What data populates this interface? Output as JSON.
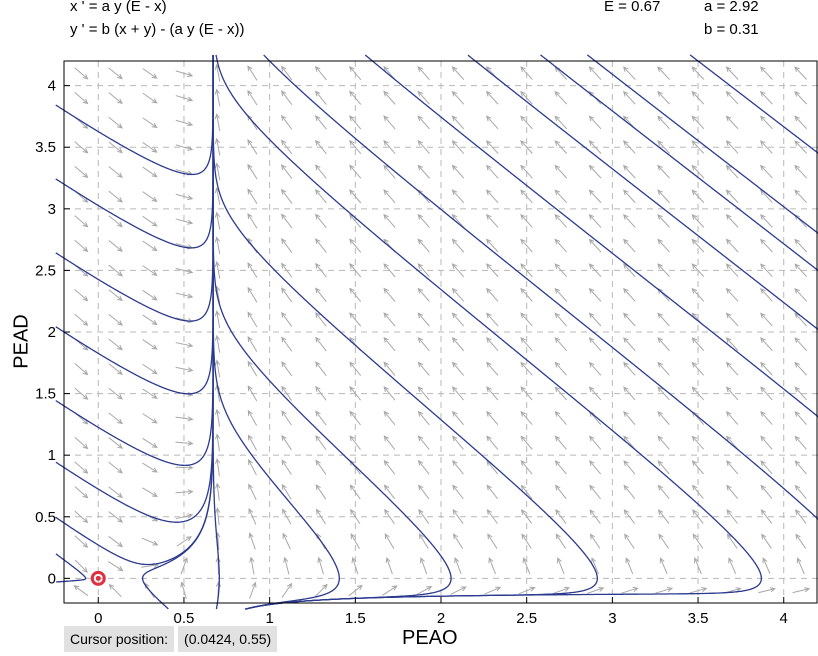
{
  "equations": {
    "line1": "x ' = a y (E - x)",
    "line2": "y ' = b (x + y) - (a y (E - x))"
  },
  "params": {
    "E": "E = 0.67",
    "a": "a = 2.92",
    "b": "b = 0.31"
  },
  "status": {
    "cursor_label": "Cursor position:",
    "cursor_value": "(0.0424, 0.55)"
  },
  "colors": {
    "trajectory": "#2b3a8f",
    "field": "#a8a8a8",
    "grid": "#b8b8b8",
    "marker": "#e03040"
  },
  "chart_data": {
    "type": "phase-portrait",
    "xlabel": "PEAO",
    "ylabel": "PEAD",
    "xlim": [
      -0.2,
      4.2
    ],
    "ylim": [
      -0.2,
      4.2
    ],
    "xticks": [
      "0",
      "0.5",
      "1",
      "1.5",
      "2",
      "2.5",
      "3",
      "3.5",
      "4"
    ],
    "yticks": [
      "0",
      "0.5",
      "1",
      "1.5",
      "2",
      "2.5",
      "3",
      "3.5",
      "4"
    ],
    "grid": true,
    "marker": {
      "x": 0,
      "y": 0
    },
    "parameters": {
      "E": 0.67,
      "a": 2.92,
      "b": 0.31
    }
  }
}
